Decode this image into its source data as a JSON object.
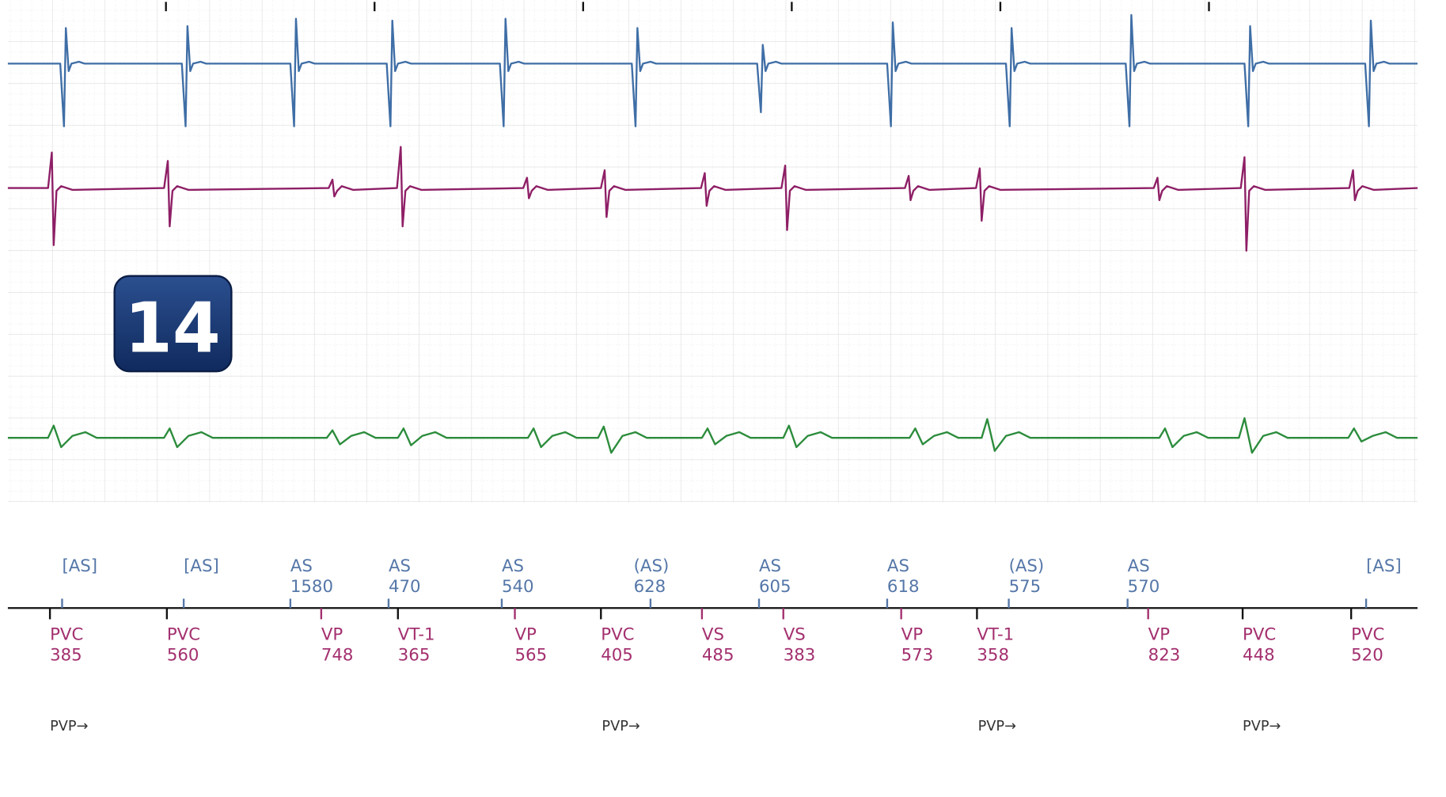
{
  "badge": "14",
  "atrial_markers": [
    {
      "label": "[AS]"
    },
    {
      "label": "[AS]"
    },
    {
      "label": "AS",
      "interval": "1580"
    },
    {
      "label": "AS",
      "interval": "470"
    },
    {
      "label": "AS",
      "interval": "540"
    },
    {
      "label": "(AS)",
      "interval": "628"
    },
    {
      "label": "AS",
      "interval": "605"
    },
    {
      "label": "AS",
      "interval": "618"
    },
    {
      "label": "(AS)",
      "interval": "575"
    },
    {
      "label": "AS",
      "interval": "570"
    },
    {
      "label": "[AS]"
    }
  ],
  "ventricular_markers": [
    {
      "label": "PVC",
      "interval": "385"
    },
    {
      "label": "PVC",
      "interval": "560"
    },
    {
      "label": "VP",
      "interval": "748"
    },
    {
      "label": "VT-1",
      "interval": "365"
    },
    {
      "label": "VP",
      "interval": "565"
    },
    {
      "label": "PVC",
      "interval": "405"
    },
    {
      "label": "VS",
      "interval": "485"
    },
    {
      "label": "VS",
      "interval": "383"
    },
    {
      "label": "VP",
      "interval": "573"
    },
    {
      "label": "VT-1",
      "interval": "358"
    },
    {
      "label": "VP",
      "interval": "823"
    },
    {
      "label": "PVC",
      "interval": "448"
    },
    {
      "label": "PVC",
      "interval": "520"
    }
  ],
  "pvp_markers": [
    "PVP→",
    "PVP→",
    "PVP→",
    "PVP→"
  ]
}
